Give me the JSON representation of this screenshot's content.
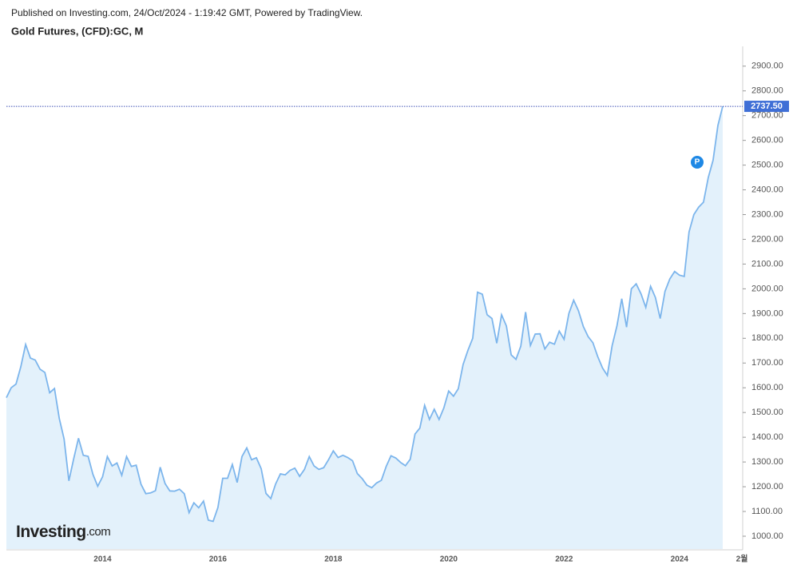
{
  "header": {
    "published": "Published on Investing.com, 24/Oct/2024 - 1:19:42 GMT, Powered by TradingView.",
    "instrument": "Gold Futures, (CFD):GC, M"
  },
  "logo": {
    "name": "Investing",
    "suffix": ".com"
  },
  "chart_data": {
    "type": "area",
    "color": "#7cb5ec",
    "fill": "#e3f1fb",
    "categories": [
      null,
      null,
      null,
      null,
      null,
      null,
      null,
      null,
      null,
      null,
      null,
      null,
      null,
      null,
      null,
      null,
      null,
      null,
      null,
      null,
      "2014",
      null,
      null,
      null,
      null,
      null,
      null,
      null,
      null,
      null,
      null,
      null,
      null,
      null,
      null,
      null,
      null,
      null,
      null,
      null,
      null,
      null,
      null,
      null,
      "2016",
      null,
      null,
      null,
      null,
      null,
      null,
      null,
      null,
      null,
      null,
      null,
      null,
      null,
      null,
      null,
      null,
      null,
      null,
      null,
      null,
      null,
      null,
      null,
      "2018",
      null,
      null,
      null,
      null,
      null,
      null,
      null,
      null,
      null,
      null,
      null,
      null,
      null,
      null,
      null,
      null,
      null,
      null,
      null,
      null,
      null,
      null,
      null,
      "2020",
      null,
      null,
      null,
      null,
      null,
      null,
      null,
      null,
      null,
      null,
      null,
      null,
      null,
      null,
      null,
      null,
      null,
      null,
      null,
      null,
      null,
      null,
      null,
      "2022",
      null,
      null,
      null,
      null,
      null,
      null,
      null,
      null,
      null,
      null,
      null,
      null,
      null,
      null,
      null,
      null,
      null,
      null,
      null,
      null,
      null,
      null,
      null,
      "2024",
      null,
      null,
      null,
      null,
      null,
      null,
      null,
      null,
      null,
      null,
      null,
      null,
      "2월"
    ],
    "values": [
      1560,
      1600,
      1615,
      1685,
      1775,
      1720,
      1712,
      1675,
      1662,
      1580,
      1597,
      1476,
      1393,
      1224,
      1313,
      1396,
      1327,
      1323,
      1250,
      1202,
      1240,
      1322,
      1284,
      1296,
      1246,
      1322,
      1282,
      1287,
      1210,
      1172,
      1175,
      1184,
      1279,
      1213,
      1183,
      1182,
      1190,
      1172,
      1095,
      1135,
      1115,
      1142,
      1065,
      1060,
      1116,
      1234,
      1234,
      1290,
      1217,
      1322,
      1357,
      1309,
      1317,
      1273,
      1173,
      1152,
      1211,
      1252,
      1248,
      1266,
      1275,
      1242,
      1270,
      1322,
      1284,
      1270,
      1277,
      1309,
      1345,
      1318,
      1327,
      1318,
      1305,
      1253,
      1233,
      1206,
      1196,
      1215,
      1226,
      1282,
      1325,
      1316,
      1298,
      1285,
      1311,
      1413,
      1437,
      1529,
      1472,
      1513,
      1472,
      1519,
      1587,
      1566,
      1596,
      1694,
      1751,
      1800,
      1986,
      1978,
      1895,
      1880,
      1780,
      1895,
      1850,
      1733,
      1715,
      1768,
      1906,
      1771,
      1817,
      1818,
      1757,
      1784,
      1776,
      1829,
      1796,
      1900,
      1954,
      1911,
      1848,
      1807,
      1782,
      1726,
      1680,
      1650,
      1770,
      1850,
      1960,
      1845,
      2000,
      2020,
      1980,
      1925,
      2010,
      1965,
      1880,
      1990,
      2040,
      2070,
      2055,
      2050,
      2230,
      2300,
      2330,
      2350,
      2450,
      2520,
      2660,
      2737.5,
      null,
      null,
      null,
      null
    ],
    "last_value": 2737.5,
    "value_labels": [
      "2737.50"
    ],
    "ylim": [
      945,
      2980
    ],
    "yticks": [
      {
        "value": 1000,
        "label": "1000.00"
      },
      {
        "value": 1100,
        "label": "1100.00"
      },
      {
        "value": 1200,
        "label": "1200.00"
      },
      {
        "value": 1300,
        "label": "1300.00"
      },
      {
        "value": 1400,
        "label": "1400.00"
      },
      {
        "value": 1500,
        "label": "1500.00"
      },
      {
        "value": 1600,
        "label": "1600.00"
      },
      {
        "value": 1700,
        "label": "1700.00"
      },
      {
        "value": 1800,
        "label": "1800.00"
      },
      {
        "value": 1900,
        "label": "1900.00"
      },
      {
        "value": 2000,
        "label": "2000.00"
      },
      {
        "value": 2100,
        "label": "2100.00"
      },
      {
        "value": 2200,
        "label": "2200.00"
      },
      {
        "value": 2300,
        "label": "2300.00"
      },
      {
        "value": 2400,
        "label": "2400.00"
      },
      {
        "value": 2500,
        "label": "2500.00"
      },
      {
        "value": 2600,
        "label": "2600.00"
      },
      {
        "value": 2700,
        "label": "2700.00"
      },
      {
        "value": 2800,
        "label": "2800.00"
      },
      {
        "value": 2900,
        "label": "2900.00"
      }
    ],
    "grid": false
  }
}
